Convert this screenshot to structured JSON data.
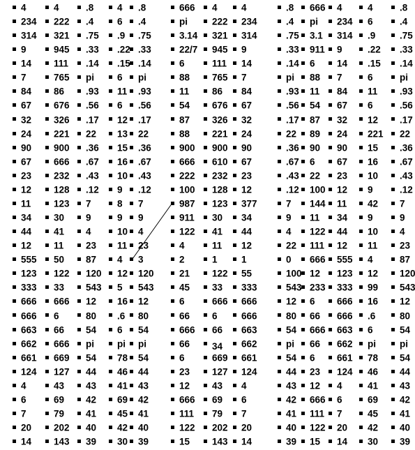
{
  "rows": [
    [
      "4",
      "4",
      ".8",
      "4",
      ".8",
      "666",
      "4",
      "4",
      ".8",
      "666",
      "4",
      "4",
      ".8"
    ],
    [
      "234",
      "222",
      ".4",
      "6",
      ".4",
      "pi",
      "222",
      "234",
      ".4",
      "pi",
      "234",
      "6",
      ".4"
    ],
    [
      "314",
      "321",
      ".75",
      ".9",
      ".75",
      "3.14",
      "321",
      "314",
      ".75",
      "3.1",
      "314",
      ".9",
      ".75"
    ],
    [
      "9",
      "945",
      ".33",
      ".22",
      ".33",
      "22/7",
      "945",
      "9",
      ".33",
      "911",
      "9",
      ".22",
      ".33"
    ],
    [
      "14",
      "111",
      ".14",
      ".15",
      ".14",
      "6",
      "111",
      "14",
      ".14",
      "6",
      "14",
      ".15",
      ".14"
    ],
    [
      "7",
      "765",
      "pi",
      "6",
      "pi",
      "88",
      "765",
      "7",
      "pi",
      "88",
      "7",
      "6",
      "pi"
    ],
    [
      "84",
      "86",
      ".93",
      "11",
      ".93",
      "11",
      "86",
      "84",
      ".93",
      "11",
      "84",
      "11",
      ".93"
    ],
    [
      "67",
      "676",
      ".56",
      "6",
      ".56",
      "54",
      "676",
      "67",
      ".56",
      "54",
      "67",
      "6",
      ".56"
    ],
    [
      "32",
      "326",
      ".17",
      "12",
      ".17",
      "87",
      "326",
      "32",
      ".17",
      "87",
      "32",
      "12",
      ".17"
    ],
    [
      "24",
      "221",
      "22",
      "13",
      "22",
      "88",
      "221",
      "24",
      "22",
      "89",
      "24",
      "221",
      "22"
    ],
    [
      "90",
      "900",
      ".36",
      "15",
      ".36",
      "900",
      "900",
      "90",
      ".36",
      "90",
      "90",
      "15",
      ".36"
    ],
    [
      "67",
      "666",
      ".67",
      "16",
      ".67",
      "666",
      "610",
      "67",
      ".67",
      "6",
      "67",
      "16",
      ".67"
    ],
    [
      "23",
      "232",
      ".43",
      "10",
      ".43",
      "222",
      "232",
      "23",
      ".43",
      "22",
      "23",
      "10",
      ".43"
    ],
    [
      "12",
      "128",
      ".12",
      "9",
      ".12",
      "100",
      "128",
      "12",
      ".12",
      "100",
      "12",
      "9",
      ".12"
    ],
    [
      "11",
      "123",
      "7",
      "8",
      "7",
      "987",
      "123",
      "377",
      "7",
      "144",
      "11",
      "42",
      "7"
    ],
    [
      "34",
      "30",
      "9",
      "9",
      "9",
      "911",
      "30",
      "34",
      "9",
      "11",
      "34",
      "9",
      "9"
    ],
    [
      "44",
      "41",
      "4",
      "10",
      "4",
      "122",
      "41",
      "44",
      "4",
      "122",
      "44",
      "10",
      "4"
    ],
    [
      "12",
      "11",
      "23",
      "11",
      "23",
      "4",
      "11",
      "12",
      "22",
      "111",
      "12",
      "11",
      "23"
    ],
    [
      "555",
      "50",
      "87",
      "4",
      "3",
      "2",
      "1",
      "1",
      "0",
      "666",
      "555",
      "4",
      "87"
    ],
    [
      "123",
      "122",
      "120",
      "12",
      "120",
      "21",
      "122",
      "55",
      "100",
      "12",
      "123",
      "12",
      "120"
    ],
    [
      "333",
      "33",
      "543",
      "5",
      "543",
      "45",
      "33",
      "333",
      "543",
      "233",
      "333",
      "99",
      "543"
    ],
    [
      "666",
      "666",
      "12",
      "16",
      "12",
      "6",
      "666",
      "666",
      "12",
      "6",
      "666",
      "16",
      "12"
    ],
    [
      "666",
      "6",
      "80",
      ".6",
      "80",
      "66",
      "6",
      "666",
      "80",
      "66",
      "666",
      ".6",
      "80"
    ],
    [
      "663",
      "66",
      "54",
      "6",
      "54",
      "666",
      "66",
      "663",
      "54",
      "666",
      "663",
      "6",
      "54"
    ],
    [
      "662",
      "666",
      "pi",
      "pi",
      "pi",
      "66",
      "34",
      "662",
      "pi",
      "66",
      "662",
      "pi",
      "pi"
    ],
    [
      "661",
      "669",
      "54",
      "78",
      "54",
      "6",
      "669",
      "661",
      "54",
      "6",
      "661",
      "78",
      "54"
    ],
    [
      "124",
      "127",
      "44",
      "46",
      "44",
      "23",
      "127",
      "124",
      "44",
      "23",
      "124",
      "46",
      "44"
    ],
    [
      "4",
      "43",
      "43",
      "41",
      "43",
      "12",
      "43",
      "4",
      "43",
      "12",
      "4",
      "41",
      "43"
    ],
    [
      "6",
      "69",
      "42",
      "69",
      "42",
      "666",
      "69",
      "6",
      "42",
      "666",
      "6",
      "69",
      "42"
    ],
    [
      "7",
      "79",
      "41",
      "45",
      "41",
      "111",
      "79",
      "7",
      "41",
      "111",
      "7",
      "45",
      "41"
    ],
    [
      "20",
      "202",
      "40",
      "42",
      "40",
      "122",
      "202",
      "20",
      "40",
      "122",
      "20",
      "42",
      "40"
    ],
    [
      "14",
      "143",
      "39",
      "30",
      "39",
      "15",
      "143",
      "14",
      "39",
      "15",
      "14",
      "30",
      "39"
    ]
  ]
}
